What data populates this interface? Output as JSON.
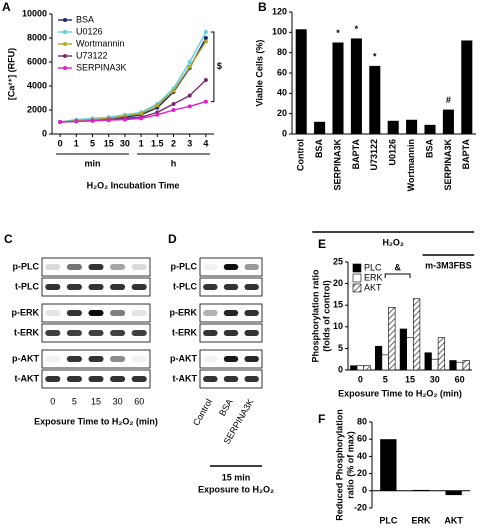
{
  "chart_data": [
    {
      "panel": "A",
      "type": "line",
      "ylabel": "[Ca²⁺] (RFU)",
      "xlabel": "H₂O₂ Incubation Time",
      "categories": [
        "0",
        "1",
        "5",
        "15",
        "30",
        "1",
        "1.5",
        "2",
        "3",
        "4"
      ],
      "x_groups": [
        "min",
        "h"
      ],
      "ylim": [
        0,
        10000
      ],
      "yticks": [
        0,
        2000,
        4000,
        6000,
        8000,
        10000
      ],
      "legend": "upper left",
      "annotation": "$",
      "series": [
        {
          "name": "BSA",
          "color": "#1f2a6b",
          "values": [
            1000,
            1100,
            1200,
            1300,
            1400,
            1600,
            2200,
            3500,
            5500,
            8000
          ]
        },
        {
          "name": "U0126",
          "color": "#5fd3e0",
          "values": [
            1000,
            1200,
            1300,
            1400,
            1600,
            1800,
            2500,
            3800,
            6000,
            8500
          ]
        },
        {
          "name": "Wortmannin",
          "color": "#b5a532",
          "values": [
            1000,
            1100,
            1200,
            1300,
            1500,
            1700,
            2400,
            3600,
            5600,
            7700
          ]
        },
        {
          "name": "U73122",
          "color": "#7a2a72",
          "values": [
            1000,
            1050,
            1100,
            1200,
            1300,
            1400,
            1800,
            2500,
            3200,
            4500
          ]
        },
        {
          "name": "SERPINA3K",
          "color": "#e020c8",
          "values": [
            1000,
            1050,
            1100,
            1150,
            1200,
            1300,
            1600,
            2000,
            2300,
            2700
          ]
        }
      ]
    },
    {
      "panel": "B",
      "type": "bar",
      "ylabel": "Viable Cells (%)",
      "categories": [
        "Control",
        "BSA",
        "SERPINA3K",
        "BAPTA",
        "U73122",
        "U0126",
        "Wortmannin",
        "BSA",
        "SERPINA3K",
        "BAPTA"
      ],
      "values": [
        103,
        12,
        90,
        94,
        67,
        13,
        14,
        9,
        24,
        92
      ],
      "color": "#000000",
      "significance": [
        null,
        null,
        "*",
        "*",
        "*",
        null,
        null,
        null,
        "#",
        null
      ],
      "groups": [
        "H₂O₂",
        "m-3M3FBS"
      ],
      "ylim": [
        0,
        120
      ],
      "yticks": [
        0,
        20,
        40,
        60,
        80,
        100,
        120
      ]
    },
    {
      "panel": "E",
      "type": "grouped_bar",
      "ylabel": [
        "Phosphorylation ratio",
        "(folds of control)"
      ],
      "xlabel": "Exposure Time to H₂O₂ (min)",
      "categories": [
        "0",
        "5",
        "15",
        "30",
        "60"
      ],
      "annotation": "&",
      "legend": "upper left",
      "ylim": [
        0,
        25
      ],
      "yticks": [
        0,
        5,
        10,
        15,
        20,
        25
      ],
      "series": [
        {
          "name": "PLC",
          "color": "#000000",
          "values": [
            1,
            5.5,
            9.5,
            4,
            2.2
          ]
        },
        {
          "name": "ERK",
          "color": "#ffffff",
          "values": [
            1,
            3.5,
            7.5,
            2.5,
            1.8
          ]
        },
        {
          "name": "AKT",
          "color": "#888888",
          "pattern": "hatch",
          "values": [
            1,
            14.5,
            16.5,
            7.5,
            2.2
          ]
        }
      ]
    },
    {
      "panel": "F",
      "type": "bar",
      "ylabel": [
        "Reduced Phosphorylation",
        "ratio (% of max)"
      ],
      "categories": [
        "PLC",
        "ERK",
        "AKT"
      ],
      "values": [
        60,
        1,
        -5
      ],
      "color": "#000000",
      "ylim": [
        -20,
        80
      ],
      "yticks": [
        -20,
        0,
        20,
        40,
        60,
        80
      ]
    }
  ],
  "blots": [
    {
      "panel": "C",
      "rows": [
        "p-PLC",
        "t-PLC",
        "p-ERK",
        "t-ERK",
        "p-AKT",
        "t-AKT"
      ],
      "lanes": [
        "0",
        "5",
        "15",
        "30",
        "60"
      ],
      "xlabel": "Exposure Time to H₂O₂ (min)"
    },
    {
      "panel": "D",
      "rows": [
        "p-PLC",
        "t-PLC",
        "p-ERK",
        "t-ERK",
        "p-AKT",
        "t-AKT"
      ],
      "lanes": [
        "Control",
        "BSA",
        "SERPINA3K"
      ],
      "footer": [
        "15 min",
        "Exposure to H₂O₂"
      ]
    }
  ]
}
